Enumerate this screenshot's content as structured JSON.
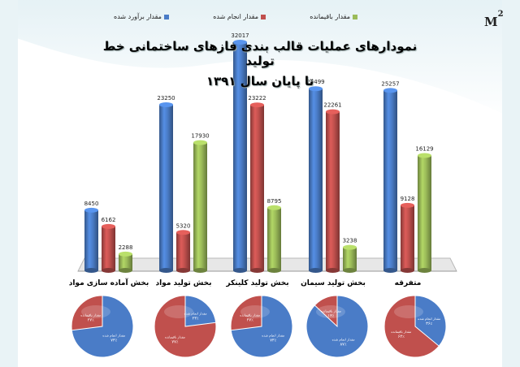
{
  "watermark": {
    "text": "M",
    "superscript": "2"
  },
  "chart_data": {
    "type": "bar",
    "title_line1": "نمودارهای عملیات قالب بندی فازهای ساختمانی خط تولید",
    "title_line2": "تا پایان سال ۱۳۹۱",
    "categories": [
      "بخش آماده سازی مواد",
      "بخش تولید مواد",
      "بخش تولید کلینکر",
      "بخش تولید سیمان",
      "متفرقه"
    ],
    "series": [
      {
        "name": "مقدار برآورد شده",
        "color": "#4a7cc7",
        "values": [
          8450,
          23250,
          32017,
          25499,
          25257
        ]
      },
      {
        "name": "مقدار انجام شده",
        "color": "#c0504d",
        "values": [
          6162,
          5320,
          23222,
          22261,
          9128
        ]
      },
      {
        "name": "مقدار باقیمانده",
        "color": "#9bbb59",
        "values": [
          2288,
          17930,
          8795,
          3238,
          16129
        ]
      }
    ],
    "ylim": [
      0,
      32017
    ],
    "grid": false,
    "legend_position": "top",
    "pies": [
      {
        "done_label": "مقدار انجام شده",
        "done_pct": "۷۳٪",
        "remain_label": "مقدار باقیمانده",
        "remain_pct": "۲۷٪",
        "done": 73
      },
      {
        "done_label": "مقدار انجام شده",
        "done_pct": "۲۳٪",
        "remain_label": "مقدار باقیمانده",
        "remain_pct": "۷۷٪",
        "done": 23
      },
      {
        "done_label": "مقدار انجام شده",
        "done_pct": "۷۳٪",
        "remain_label": "مقدار باقیمانده",
        "remain_pct": "۲۷٪",
        "done": 73
      },
      {
        "done_label": "مقدار انجام شده",
        "done_pct": "۸۷٪",
        "remain_label": "مقدار باقیمانده",
        "remain_pct": "۱۳٪",
        "done": 87
      },
      {
        "done_label": "مقدار انجام شده",
        "done_pct": "۳۶٪",
        "remain_label": "مقدار باقیمانده",
        "remain_pct": "۶۴٪",
        "done": 36
      }
    ]
  }
}
